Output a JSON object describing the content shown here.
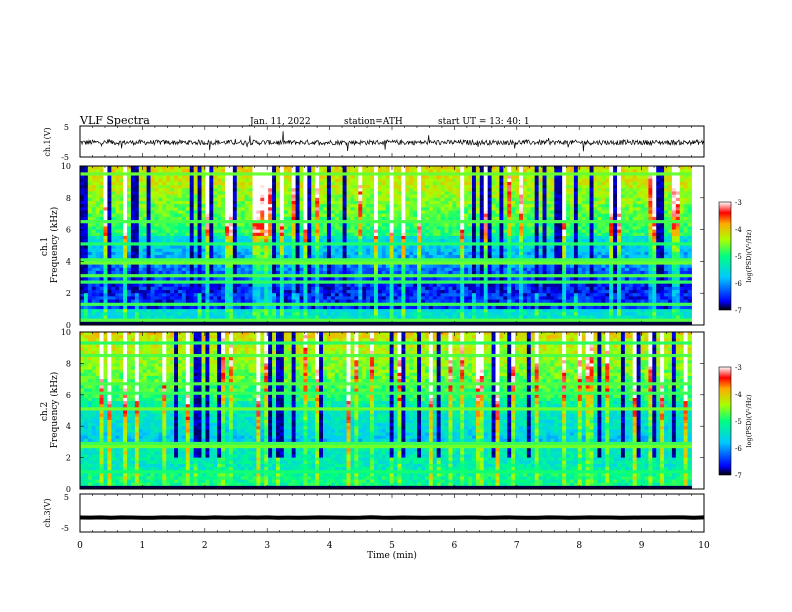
{
  "header": {
    "title": "VLF  Spectra",
    "date": "Jan. 11, 2022",
    "station": "station=ATH",
    "start": "start  UT  =   13: 40: 1"
  },
  "chart_data": [
    {
      "type": "line",
      "name": "waveform-ch1",
      "ylabel": "ch.1(V)",
      "ylim": [
        -5,
        5
      ],
      "yticks": [
        "5",
        "-5"
      ],
      "xlim": [
        0,
        10
      ],
      "baseline": -0.3,
      "color": "#000000"
    },
    {
      "type": "heatmap",
      "name": "spectrogram-ch1",
      "ylabel": "ch.1\nFrequency (kHz)",
      "ylim": [
        0,
        10
      ],
      "yticks": [
        "0",
        "2",
        "4",
        "6",
        "8",
        "10"
      ],
      "xlim": [
        0,
        9.8
      ]
    },
    {
      "type": "heatmap",
      "name": "spectrogram-ch2",
      "ylabel": "ch.2\nFrequency (kHz)",
      "ylim": [
        0,
        10
      ],
      "yticks": [
        "0",
        "2",
        "4",
        "6",
        "8",
        "10"
      ],
      "xlim": [
        0,
        9.8
      ]
    },
    {
      "type": "line",
      "name": "waveform-ch3",
      "ylabel": "ch.3(V)",
      "ylim": [
        -5,
        5
      ],
      "yticks": [
        "5",
        "-5"
      ],
      "xlim": [
        0,
        10
      ],
      "baseline": -1.2,
      "color": "#000000"
    }
  ],
  "x_axis": {
    "label": "Time  (min)",
    "ticks": [
      "0",
      "1",
      "2",
      "3",
      "4",
      "5",
      "6",
      "7",
      "8",
      "9",
      "10"
    ]
  },
  "colorbar": {
    "label": "log(PSD)(V²/Hz)",
    "ticks": [
      "-3",
      "-4",
      "-5",
      "-6",
      "-7"
    ],
    "range": [
      -7,
      -3
    ],
    "colors": [
      "#000000",
      "#0000ff",
      "#00c8ff",
      "#00ff80",
      "#aaff00",
      "#ffaa00",
      "#ff0000",
      "#ffffff"
    ]
  }
}
